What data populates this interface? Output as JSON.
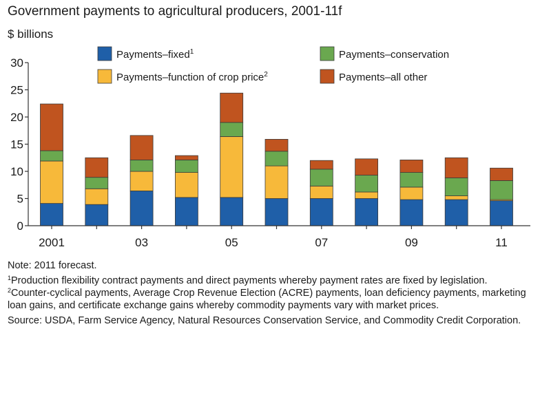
{
  "chart_data": {
    "type": "bar",
    "stacked": true,
    "title": "Government payments to agricultural producers, 2001-11f",
    "ylabel": "$ billions",
    "xlabel": "",
    "ylim": [
      0,
      30
    ],
    "yticks": [
      0,
      5,
      10,
      15,
      20,
      25,
      30
    ],
    "categories": [
      "2001",
      "2002",
      "2003",
      "2004",
      "2005",
      "2006",
      "2007",
      "2008",
      "2009",
      "2010",
      "2011"
    ],
    "tick_labels": [
      "2001",
      "",
      "03",
      "",
      "05",
      "",
      "07",
      "",
      "09",
      "",
      "11"
    ],
    "series": [
      {
        "name": "Payments–fixed",
        "footnote": "1",
        "color": "#1f5fa8",
        "values": [
          4.1,
          3.9,
          6.4,
          5.2,
          5.2,
          5.0,
          5.0,
          5.0,
          4.8,
          4.8,
          4.6
        ]
      },
      {
        "name": "Payments–function of crop price",
        "footnote": "2",
        "color": "#f7b93a",
        "values": [
          7.8,
          2.9,
          3.6,
          4.6,
          11.2,
          6.0,
          2.3,
          1.2,
          2.3,
          0.7,
          0.2
        ]
      },
      {
        "name": "Payments–conservation",
        "footnote": "",
        "color": "#6aa84f",
        "values": [
          1.9,
          2.1,
          2.1,
          2.3,
          2.6,
          2.7,
          3.1,
          3.1,
          2.7,
          3.3,
          3.5
        ]
      },
      {
        "name": "Payments–all other",
        "footnote": "",
        "color": "#c0541f",
        "values": [
          8.6,
          3.6,
          4.5,
          0.8,
          5.4,
          2.2,
          1.6,
          3.0,
          2.3,
          3.7,
          2.3
        ]
      }
    ],
    "legend_position": "top"
  },
  "notes": {
    "forecast": "Note: 2011 forecast.",
    "fn1_mark": "1",
    "fn1_text": "Production flexibility contract payments and direct payments whereby payment rates are fixed by legislation.",
    "fn2_mark": "2",
    "fn2_text": "Counter-cyclical payments, Average Crop Revenue Election (ACRE) payments, loan deficiency payments, marketing loan gains, and certificate exchange gains whereby commodity payments vary with market prices.",
    "source": "Source: USDA, Farm Service Agency, Natural Resources Conservation Service, and Commodity Credit Corporation."
  }
}
